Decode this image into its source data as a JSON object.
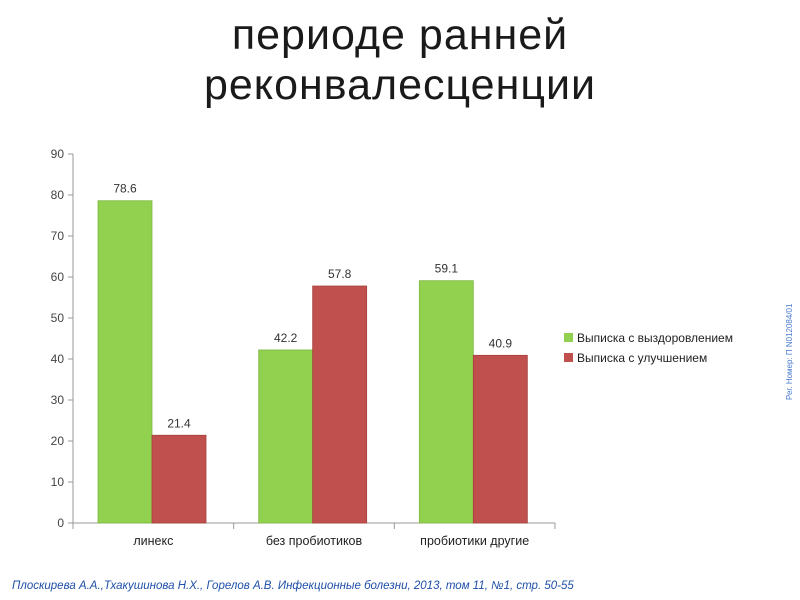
{
  "title": {
    "line1": "периоде ранней",
    "line2": "реконвалесценции"
  },
  "chart_data": {
    "type": "bar",
    "categories": [
      "линекс",
      "без пробиотиков",
      "пробиотики другие"
    ],
    "series": [
      {
        "name": "Выписка с выздоровлением",
        "values": [
          78.6,
          42.2,
          59.1
        ],
        "color": "#92d050"
      },
      {
        "name": "Выписка с улучшением",
        "values": [
          21.4,
          57.8,
          40.9
        ],
        "color": "#c0504d"
      }
    ],
    "ylim": [
      0,
      90
    ],
    "yticks": [
      0,
      10,
      20,
      30,
      40,
      50,
      60,
      70,
      80,
      90
    ],
    "grid": false,
    "legend_position": "right",
    "data_labels": [
      "78.6",
      "21.4",
      "42.2",
      "57.8",
      "59.1",
      "40.9"
    ]
  },
  "side_note": "Рег. Номер: П N012084/01",
  "source": "Плоскирева А.А.,Тхакушинова Н.Х., Горелов А.В. Инфекционные болезни, 2013, том 11, №1, стр. 50-55"
}
